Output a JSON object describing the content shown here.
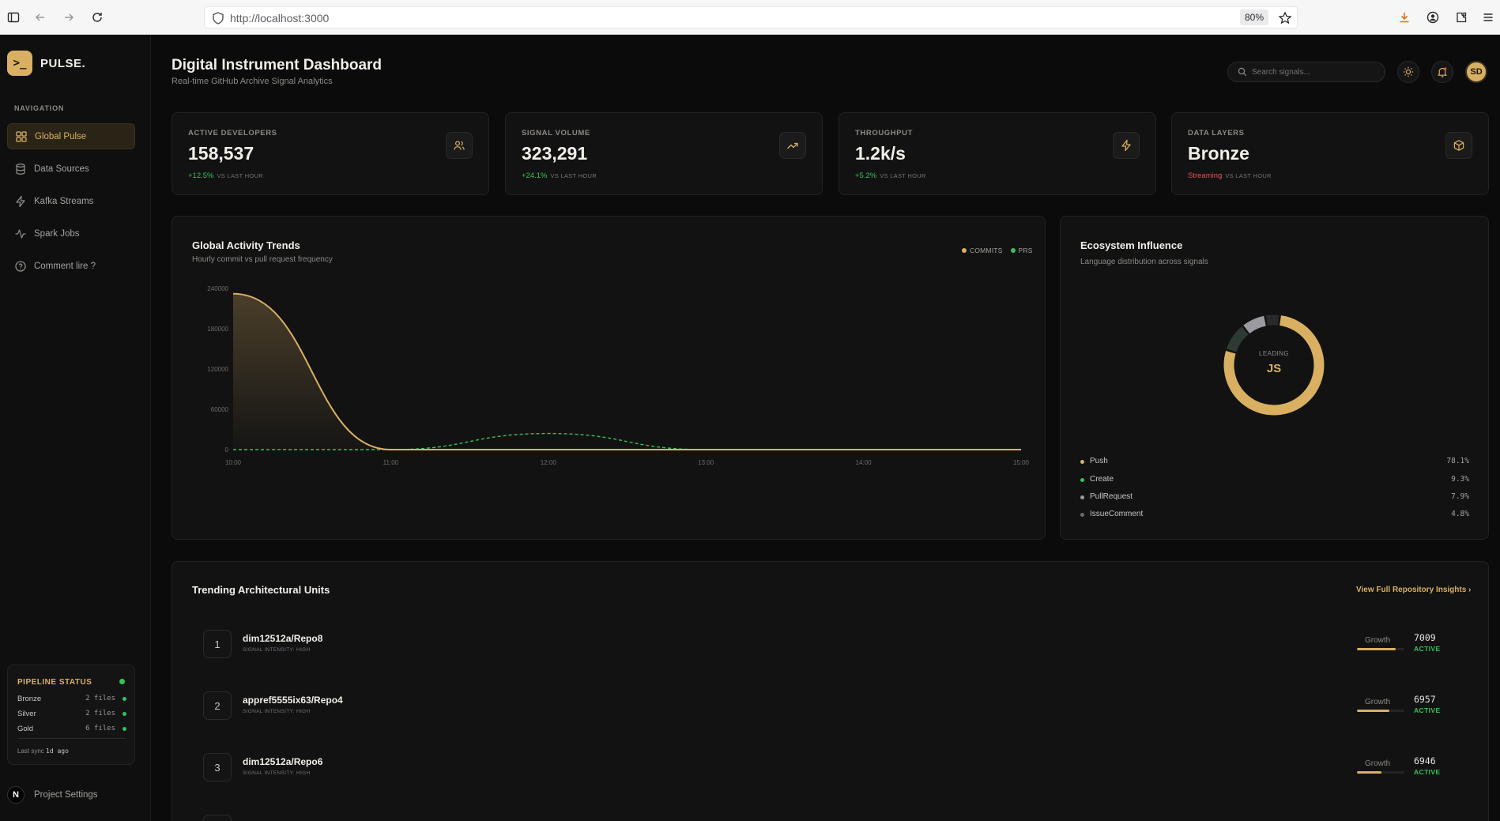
{
  "browser": {
    "url": "http://localhost:3000",
    "zoom": "80%"
  },
  "sidebar": {
    "brand": "PULSE.",
    "logo_glyph": ">_",
    "nav_heading": "NAVIGATION",
    "items": [
      {
        "label": "Global Pulse",
        "icon": "grid-icon",
        "active": true
      },
      {
        "label": "Data Sources",
        "icon": "database-icon",
        "active": false
      },
      {
        "label": "Kafka Streams",
        "icon": "bolt-icon",
        "active": false
      },
      {
        "label": "Spark Jobs",
        "icon": "activity-icon",
        "active": false
      },
      {
        "label": "Comment lire ?",
        "icon": "help-circle-icon",
        "active": false
      }
    ],
    "pipeline": {
      "title": "PIPELINE STATUS",
      "rows": [
        {
          "name": "Bronze",
          "files": "2 files"
        },
        {
          "name": "Silver",
          "files": "2 files"
        },
        {
          "name": "Gold",
          "files": "6 files"
        }
      ],
      "sync_label": "Last sync",
      "sync_value": "1d ago"
    },
    "project_settings": "Project Settings",
    "project_badge": "N"
  },
  "header": {
    "title": "Digital Instrument Dashboard",
    "subtitle": "Real-time GitHub Archive Signal Analytics",
    "search_placeholder": "Search signals...",
    "avatar": "SD"
  },
  "stats": [
    {
      "label": "ACTIVE DEVELOPERS",
      "value": "158,537",
      "delta": "+12.5%",
      "vs": "VS LAST HOUR",
      "icon": "users-icon",
      "warn": false
    },
    {
      "label": "SIGNAL VOLUME",
      "value": "323,291",
      "delta": "+24.1%",
      "vs": "VS LAST HOUR",
      "icon": "trending-up-icon",
      "warn": false
    },
    {
      "label": "THROUGHPUT",
      "value": "1.2k/s",
      "delta": "+5.2%",
      "vs": "VS LAST HOUR",
      "icon": "bolt-icon",
      "warn": false
    },
    {
      "label": "DATA LAYERS",
      "value": "Bronze",
      "delta": "Streaming",
      "vs": "VS LAST HOUR",
      "icon": "box-icon",
      "warn": true
    }
  ],
  "activity": {
    "title": "Global Activity Trends",
    "subtitle": "Hourly commit vs pull request frequency",
    "legend": [
      "COMMITS",
      "PRS"
    ],
    "colors": {
      "commits": "#d9b062",
      "prs": "#36c25a"
    }
  },
  "ecosystem": {
    "title": "Ecosystem Influence",
    "subtitle": "Language distribution across signals",
    "center_label": "LEADING",
    "center_value": "JS",
    "items": [
      {
        "name": "Push",
        "pct": "78.1%",
        "value": 78.1,
        "color": "#d9b062"
      },
      {
        "name": "Create",
        "pct": "9.3%",
        "value": 9.3,
        "color": "#36c25a"
      },
      {
        "name": "PullRequest",
        "pct": "7.9%",
        "value": 7.9,
        "color": "#9a9aa0"
      },
      {
        "name": "IssueComment",
        "pct": "4.8%",
        "value": 4.8,
        "color": "#6b6b70"
      }
    ]
  },
  "trending": {
    "title": "Trending Architectural Units",
    "link": "View Full Repository Insights ›",
    "growth_label": "Growth",
    "repos": [
      {
        "rank": "1",
        "name": "dim12512a/Repo8",
        "intensity": "SIGNAL INTENSITY: HIGH",
        "count": "7009",
        "status": "ACTIVE",
        "growth": 0.82
      },
      {
        "rank": "2",
        "name": "appref5555ix63/Repo4",
        "intensity": "SIGNAL INTENSITY: HIGH",
        "count": "6957",
        "status": "ACTIVE",
        "growth": 0.68
      },
      {
        "rank": "3",
        "name": "dim12512a/Repo6",
        "intensity": "SIGNAL INTENSITY: HIGH",
        "count": "6946",
        "status": "ACTIVE",
        "growth": 0.52
      }
    ]
  },
  "chart_data": {
    "type": "line",
    "title": "Global Activity Trends",
    "x": [
      "10:00",
      "11:00",
      "12:00",
      "13:00",
      "14:00",
      "15:00"
    ],
    "yticks": [
      "240000",
      "180000",
      "120000",
      "60000",
      "0"
    ],
    "ylim": [
      0,
      240000
    ],
    "series": [
      {
        "name": "COMMITS",
        "values": [
          232000,
          0,
          0,
          0,
          0,
          0
        ]
      },
      {
        "name": "PRS",
        "values": [
          0,
          0,
          24000,
          0,
          0,
          0
        ]
      }
    ]
  }
}
